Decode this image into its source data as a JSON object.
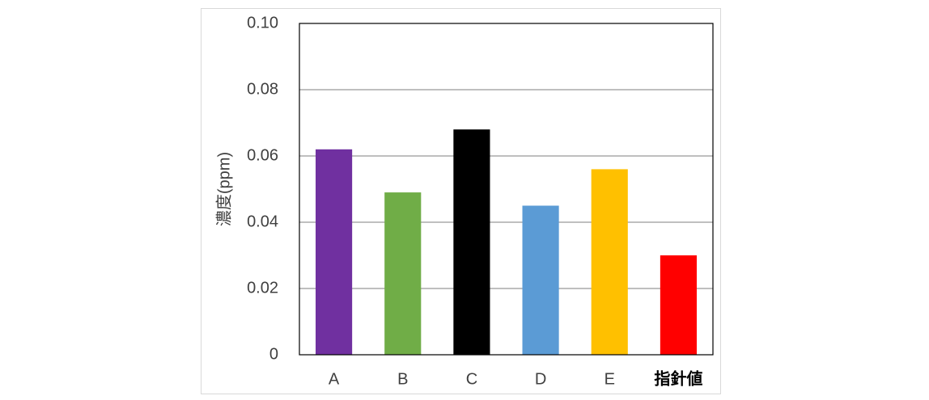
{
  "chart_data": {
    "type": "bar",
    "y_label": "濃度(ppm)",
    "categories": [
      "A",
      "B",
      "C",
      "D",
      "E",
      "指針値"
    ],
    "values": [
      0.062,
      0.049,
      0.068,
      0.045,
      0.056,
      0.03
    ],
    "colors": [
      "#7030a0",
      "#70ad47",
      "#000000",
      "#5b9bd5",
      "#ffc000",
      "#ff0000"
    ],
    "ylim": [
      0,
      0.1
    ],
    "yticks": [
      0,
      0.02,
      0.04,
      0.06,
      0.08,
      {
        "value": 0.1,
        "label": "0.10"
      }
    ],
    "grid": true
  }
}
